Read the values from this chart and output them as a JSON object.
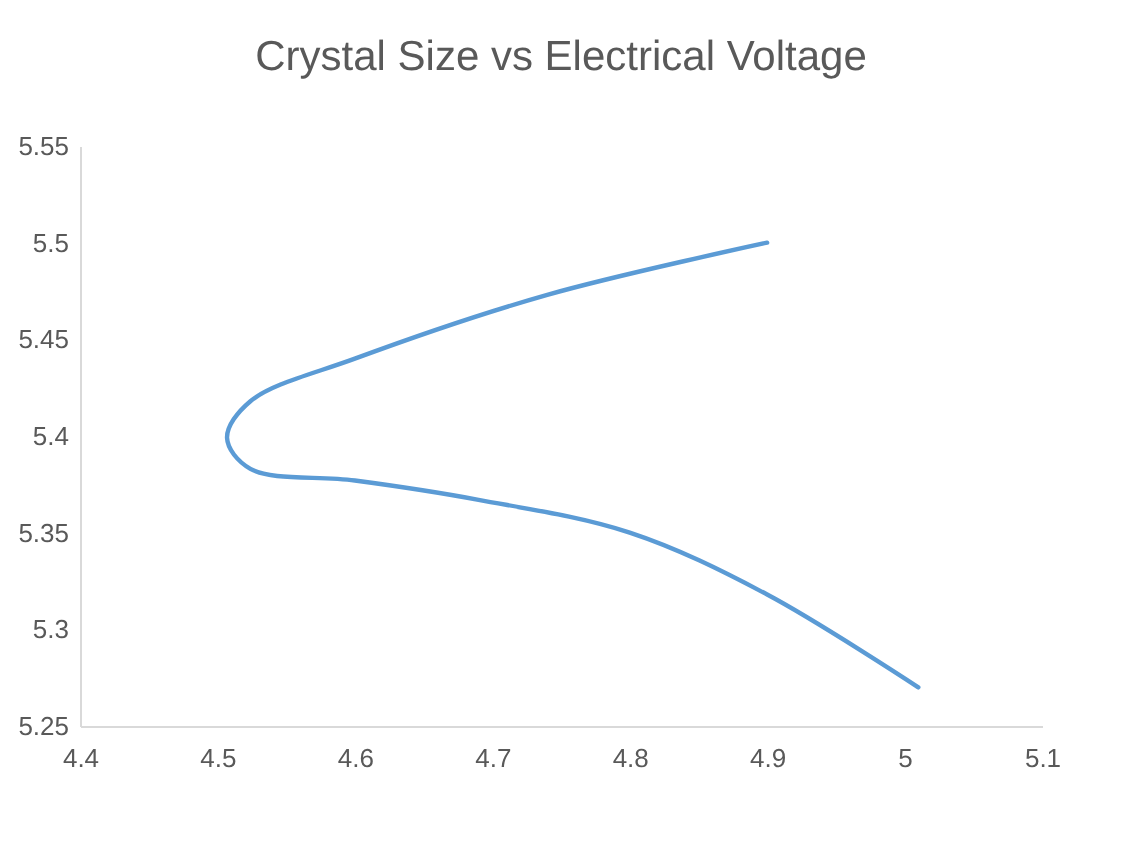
{
  "chart_data": {
    "type": "line",
    "title": "Crystal Size vs Electrical Voltage",
    "x": [
      5.01,
      4.9,
      4.8,
      4.69,
      4.6,
      4.524,
      4.507,
      4.524,
      4.6,
      4.74,
      4.9
    ],
    "series": [
      {
        "color": "#5b9bd5",
        "values": [
          5.27,
          5.318,
          5.35,
          5.367,
          5.377,
          5.383,
          5.399,
          5.418,
          5.44,
          5.473,
          5.5
        ]
      }
    ],
    "xlim": [
      4.4,
      5.1
    ],
    "xticks": [
      4.4,
      4.5,
      4.6,
      4.7,
      4.8,
      4.9,
      5,
      5.1
    ],
    "ylim": [
      5.25,
      5.55
    ],
    "yticks": [
      5.25,
      5.3,
      5.35,
      5.4,
      5.45,
      5.5,
      5.55
    ],
    "grid": false,
    "marker": "none",
    "line_style": "solid"
  }
}
